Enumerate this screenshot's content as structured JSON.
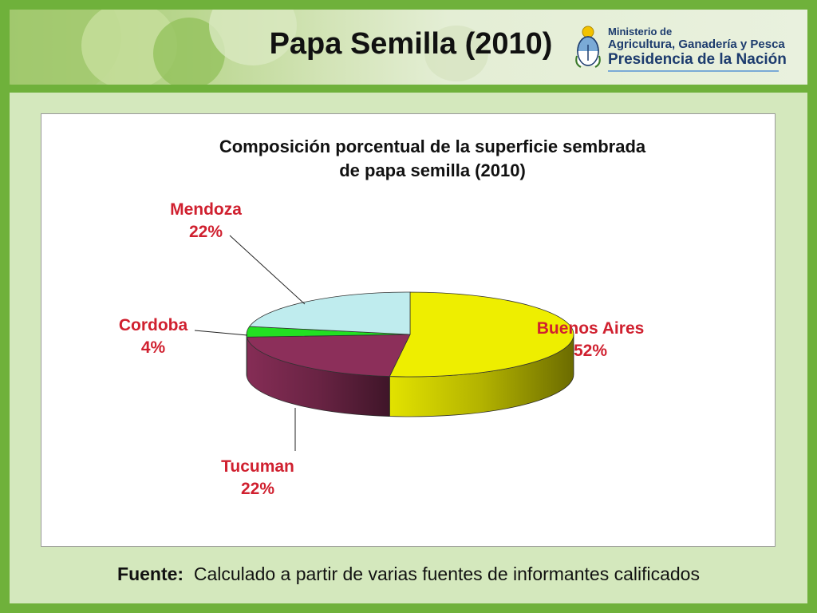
{
  "header": {
    "title": "Papa Semilla (2010)",
    "logo": {
      "line1": "Ministerio de",
      "line2": "Agricultura, Ganadería y Pesca",
      "line3": "Presidencia de la Nación"
    }
  },
  "chart_data": {
    "type": "pie",
    "style": "3d",
    "title_lines": [
      "Composición porcentual de la superficie sembrada",
      "de papa semilla (2010)"
    ],
    "slices": [
      {
        "label": "Buenos Aires",
        "value": 52,
        "display": "52%",
        "color": "#eeee00"
      },
      {
        "label": "Tucuman",
        "value": 22,
        "display": "22%",
        "color": "#8c2f5a"
      },
      {
        "label": "Cordoba",
        "value": 4,
        "display": "4%",
        "color": "#22e022"
      },
      {
        "label": "Mendoza",
        "value": 22,
        "display": "22%",
        "color": "#bfecee"
      }
    ],
    "label_color": "#d0202f"
  },
  "footer": {
    "source_label": "Fuente:",
    "source_text": "Calculado a partir de varias fuentes  de informantes calificados"
  }
}
